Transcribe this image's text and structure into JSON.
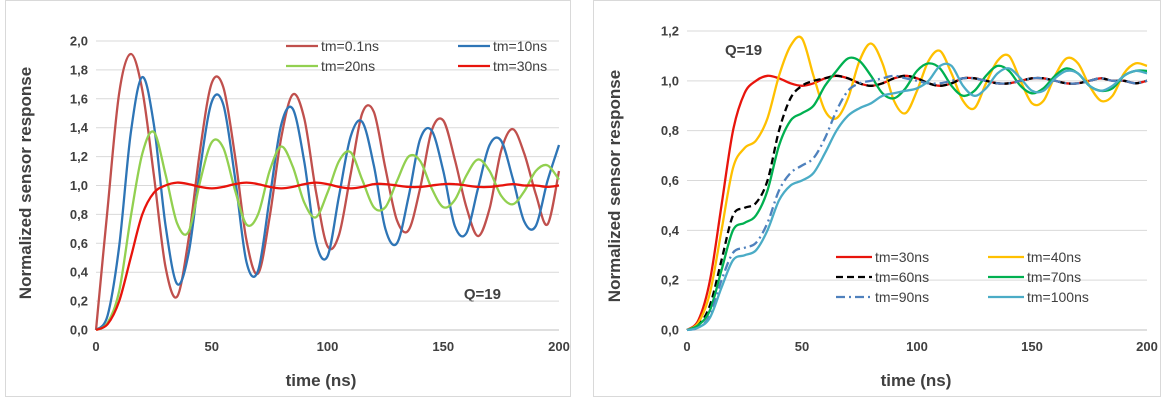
{
  "chart_data": [
    {
      "type": "line",
      "xlabel": "time (ns)",
      "ylabel": "Normalized sensor response",
      "xlim": [
        0,
        200
      ],
      "ylim": [
        0,
        2.0
      ],
      "x_ticks": [
        "0",
        "50",
        "100",
        "150",
        "200"
      ],
      "y_ticks": [
        "0,0",
        "0,2",
        "0,4",
        "0,6",
        "0,8",
        "1,0",
        "1,2",
        "1,4",
        "1,6",
        "1,8",
        "2,0"
      ],
      "grid": "horizontal",
      "legend_position": "top-right",
      "annotation": "Q=19",
      "series": [
        {
          "name": "tm=0.1ns",
          "color": "#c0504d",
          "style": "solid",
          "x": [
            0,
            5,
            10,
            15,
            20,
            25,
            30,
            35,
            40,
            45,
            50,
            55,
            60,
            65,
            70,
            75,
            80,
            85,
            90,
            95,
            100,
            105,
            110,
            115,
            120,
            125,
            130,
            135,
            140,
            145,
            150,
            155,
            160,
            165,
            170,
            175,
            180,
            185,
            190,
            195,
            200
          ],
          "y": [
            0,
            0.84,
            1.64,
            1.91,
            1.66,
            1.07,
            0.44,
            0.23,
            0.63,
            1.25,
            1.71,
            1.68,
            1.21,
            0.62,
            0.39,
            0.78,
            1.33,
            1.63,
            1.46,
            0.96,
            0.58,
            0.66,
            1.08,
            1.5,
            1.51,
            1.12,
            0.76,
            0.69,
            0.98,
            1.38,
            1.45,
            1.18,
            0.85,
            0.65,
            0.84,
            1.24,
            1.39,
            1.22,
            0.94,
            0.73,
            1.1
          ]
        },
        {
          "name": "tm=10ns",
          "color": "#2e75b6",
          "style": "solid",
          "x": [
            0,
            5,
            10,
            15,
            20,
            25,
            30,
            35,
            40,
            45,
            50,
            55,
            60,
            65,
            70,
            75,
            80,
            85,
            90,
            95,
            100,
            105,
            110,
            115,
            120,
            125,
            130,
            135,
            140,
            145,
            150,
            155,
            160,
            165,
            170,
            175,
            180,
            185,
            190,
            195,
            200
          ],
          "y": [
            0,
            0.1,
            0.58,
            1.36,
            1.75,
            1.42,
            0.73,
            0.32,
            0.53,
            1.12,
            1.58,
            1.56,
            1.06,
            0.47,
            0.41,
            0.91,
            1.42,
            1.53,
            1.16,
            0.61,
            0.51,
            0.93,
            1.34,
            1.44,
            1.14,
            0.7,
            0.6,
            0.92,
            1.32,
            1.38,
            1.1,
            0.72,
            0.67,
            0.98,
            1.28,
            1.31,
            1.05,
            0.75,
            0.72,
            1.03,
            1.28
          ]
        },
        {
          "name": "tm=20ns",
          "color": "#92d050",
          "style": "solid",
          "x": [
            0,
            5,
            10,
            15,
            20,
            25,
            30,
            35,
            40,
            45,
            50,
            55,
            60,
            65,
            70,
            75,
            80,
            85,
            90,
            95,
            100,
            105,
            110,
            115,
            120,
            125,
            130,
            135,
            140,
            145,
            150,
            155,
            160,
            165,
            170,
            175,
            180,
            185,
            190,
            195,
            200
          ],
          "y": [
            0,
            0.05,
            0.27,
            0.78,
            1.22,
            1.37,
            1.08,
            0.74,
            0.68,
            1.03,
            1.3,
            1.26,
            0.97,
            0.73,
            0.8,
            1.1,
            1.27,
            1.13,
            0.88,
            0.78,
            0.95,
            1.17,
            1.23,
            1.04,
            0.85,
            0.85,
            1.03,
            1.2,
            1.17,
            0.98,
            0.85,
            0.9,
            1.07,
            1.18,
            1.1,
            0.93,
            0.87,
            0.96,
            1.1,
            1.14,
            1.04
          ]
        },
        {
          "name": "tm=30ns",
          "color": "#e8140c",
          "style": "solid",
          "x": [
            0,
            5,
            10,
            15,
            20,
            25,
            30,
            35,
            40,
            45,
            50,
            55,
            60,
            65,
            70,
            75,
            80,
            85,
            90,
            95,
            100,
            105,
            110,
            115,
            120,
            125,
            130,
            135,
            140,
            145,
            150,
            155,
            160,
            165,
            170,
            175,
            180,
            185,
            190,
            195,
            200
          ],
          "y": [
            0,
            0.04,
            0.2,
            0.5,
            0.8,
            0.95,
            1.0,
            1.02,
            1.01,
            0.99,
            0.98,
            0.99,
            1.01,
            1.02,
            1.01,
            0.99,
            0.98,
            0.99,
            1.01,
            1.02,
            1.01,
            0.99,
            0.98,
            0.99,
            1.01,
            1.01,
            1.0,
            0.99,
            0.99,
            1.0,
            1.01,
            1.01,
            1.0,
            0.99,
            0.99,
            1.0,
            1.01,
            1.0,
            1.0,
            0.99,
            1.0
          ]
        }
      ]
    },
    {
      "type": "line",
      "xlabel": "time (ns)",
      "ylabel": "Normalized sensor response",
      "xlim": [
        0,
        200
      ],
      "ylim": [
        0,
        1.2
      ],
      "x_ticks": [
        "0",
        "50",
        "100",
        "150",
        "200"
      ],
      "y_ticks": [
        "0,0",
        "0,2",
        "0,4",
        "0,6",
        "0,8",
        "1,0",
        "1,2"
      ],
      "grid": "horizontal",
      "legend_position": "bottom-right",
      "annotation": "Q=19",
      "series": [
        {
          "name": "tm=30ns",
          "color": "#e8140c",
          "style": "solid",
          "x": [
            0,
            5,
            10,
            15,
            20,
            25,
            30,
            35,
            40,
            45,
            50,
            55,
            60,
            65,
            70,
            75,
            80,
            85,
            90,
            95,
            100,
            105,
            110,
            115,
            120,
            125,
            130,
            135,
            140,
            145,
            150,
            155,
            160,
            165,
            170,
            175,
            180,
            185,
            190,
            195,
            200
          ],
          "y": [
            0,
            0.04,
            0.2,
            0.5,
            0.8,
            0.95,
            1.0,
            1.02,
            1.01,
            0.99,
            0.98,
            0.99,
            1.01,
            1.02,
            1.01,
            0.99,
            0.98,
            0.99,
            1.01,
            1.02,
            1.01,
            0.99,
            0.98,
            0.99,
            1.01,
            1.01,
            1.0,
            0.99,
            0.99,
            1.0,
            1.01,
            1.01,
            1.0,
            0.99,
            0.99,
            1.0,
            1.01,
            1.0,
            1.0,
            0.99,
            1.0
          ]
        },
        {
          "name": "tm=40ns",
          "color": "#ffc000",
          "style": "solid",
          "x": [
            0,
            5,
            10,
            15,
            20,
            25,
            30,
            35,
            40,
            45,
            50,
            55,
            60,
            65,
            70,
            75,
            80,
            85,
            90,
            95,
            100,
            105,
            110,
            115,
            120,
            125,
            130,
            135,
            140,
            145,
            150,
            155,
            160,
            165,
            170,
            175,
            180,
            185,
            190,
            195,
            200
          ],
          "y": [
            0,
            0.03,
            0.15,
            0.4,
            0.65,
            0.73,
            0.76,
            0.85,
            1.02,
            1.14,
            1.17,
            1.02,
            0.88,
            0.85,
            0.93,
            1.08,
            1.15,
            1.07,
            0.92,
            0.87,
            0.96,
            1.08,
            1.12,
            1.03,
            0.92,
            0.89,
            0.99,
            1.08,
            1.1,
            1.0,
            0.91,
            0.92,
            1.02,
            1.09,
            1.07,
            0.98,
            0.92,
            0.94,
            1.03,
            1.07,
            1.06
          ]
        },
        {
          "name": "tm=60ns",
          "color": "#000000",
          "style": "dash",
          "x": [
            0,
            5,
            10,
            15,
            20,
            25,
            30,
            35,
            40,
            45,
            50,
            55,
            60,
            65,
            70,
            75,
            80,
            85,
            90,
            95,
            100,
            105,
            110,
            115,
            120,
            125,
            130,
            135,
            140,
            145,
            150,
            155,
            160,
            165,
            170,
            175,
            180,
            185,
            190,
            195,
            200
          ],
          "y": [
            0,
            0.02,
            0.1,
            0.28,
            0.46,
            0.49,
            0.51,
            0.6,
            0.8,
            0.93,
            0.98,
            1.0,
            1.01,
            1.02,
            1.01,
            0.99,
            0.98,
            0.99,
            1.01,
            1.02,
            1.01,
            0.99,
            0.98,
            0.99,
            1.01,
            1.01,
            1.0,
            0.99,
            0.99,
            1.0,
            1.01,
            1.01,
            1.0,
            0.99,
            0.99,
            1.0,
            1.01,
            1.0,
            1.0,
            0.99,
            1.0
          ]
        },
        {
          "name": "tm=70ns",
          "color": "#00b050",
          "style": "solid",
          "x": [
            0,
            5,
            10,
            15,
            20,
            25,
            30,
            35,
            40,
            45,
            50,
            55,
            60,
            65,
            70,
            75,
            80,
            85,
            90,
            95,
            100,
            105,
            110,
            115,
            120,
            125,
            130,
            135,
            140,
            145,
            150,
            155,
            160,
            165,
            170,
            175,
            180,
            185,
            190,
            195,
            200
          ],
          "y": [
            0,
            0.02,
            0.08,
            0.24,
            0.4,
            0.43,
            0.46,
            0.56,
            0.74,
            0.84,
            0.87,
            0.9,
            0.98,
            1.04,
            1.09,
            1.08,
            1.02,
            0.95,
            0.93,
            0.97,
            1.04,
            1.07,
            1.05,
            0.98,
            0.94,
            0.96,
            1.02,
            1.06,
            1.04,
            0.98,
            0.95,
            0.97,
            1.02,
            1.05,
            1.03,
            0.98,
            0.96,
            0.97,
            1.02,
            1.04,
            1.04
          ]
        },
        {
          "name": "tm=90ns",
          "color": "#4f81bd",
          "style": "dashdot",
          "x": [
            0,
            5,
            10,
            15,
            20,
            25,
            30,
            35,
            40,
            45,
            50,
            55,
            60,
            65,
            70,
            75,
            80,
            85,
            90,
            95,
            100,
            105,
            110,
            115,
            120,
            125,
            130,
            135,
            140,
            145,
            150,
            155,
            160,
            165,
            170,
            175,
            180,
            185,
            190,
            195,
            200
          ],
          "y": [
            0,
            0.01,
            0.06,
            0.2,
            0.31,
            0.33,
            0.35,
            0.43,
            0.56,
            0.63,
            0.66,
            0.69,
            0.77,
            0.88,
            0.96,
            0.99,
            1.0,
            1.01,
            1.02,
            1.01,
            1.0,
            0.99,
            0.99,
            1.0,
            1.01,
            1.01,
            1.0,
            0.99,
            0.99,
            1.0,
            1.01,
            1.01,
            1.0,
            0.99,
            0.99,
            1.0,
            1.01,
            1.0,
            1.0,
            0.99,
            1.0
          ]
        },
        {
          "name": "tm=100ns",
          "color": "#4bacc6",
          "style": "solid",
          "x": [
            0,
            5,
            10,
            15,
            20,
            25,
            30,
            35,
            40,
            45,
            50,
            55,
            60,
            65,
            70,
            75,
            80,
            85,
            90,
            95,
            100,
            105,
            110,
            115,
            120,
            125,
            130,
            135,
            140,
            145,
            150,
            155,
            160,
            165,
            170,
            175,
            180,
            185,
            190,
            195,
            200
          ],
          "y": [
            0,
            0.01,
            0.05,
            0.17,
            0.28,
            0.3,
            0.32,
            0.4,
            0.52,
            0.58,
            0.6,
            0.63,
            0.71,
            0.8,
            0.86,
            0.89,
            0.91,
            0.94,
            0.95,
            0.96,
            0.97,
            1.0,
            1.06,
            1.06,
            0.98,
            0.94,
            0.97,
            1.03,
            1.05,
            1.01,
            0.96,
            0.96,
            1.01,
            1.04,
            1.03,
            0.98,
            0.96,
            0.98,
            1.02,
            1.04,
            1.03
          ]
        }
      ]
    }
  ]
}
